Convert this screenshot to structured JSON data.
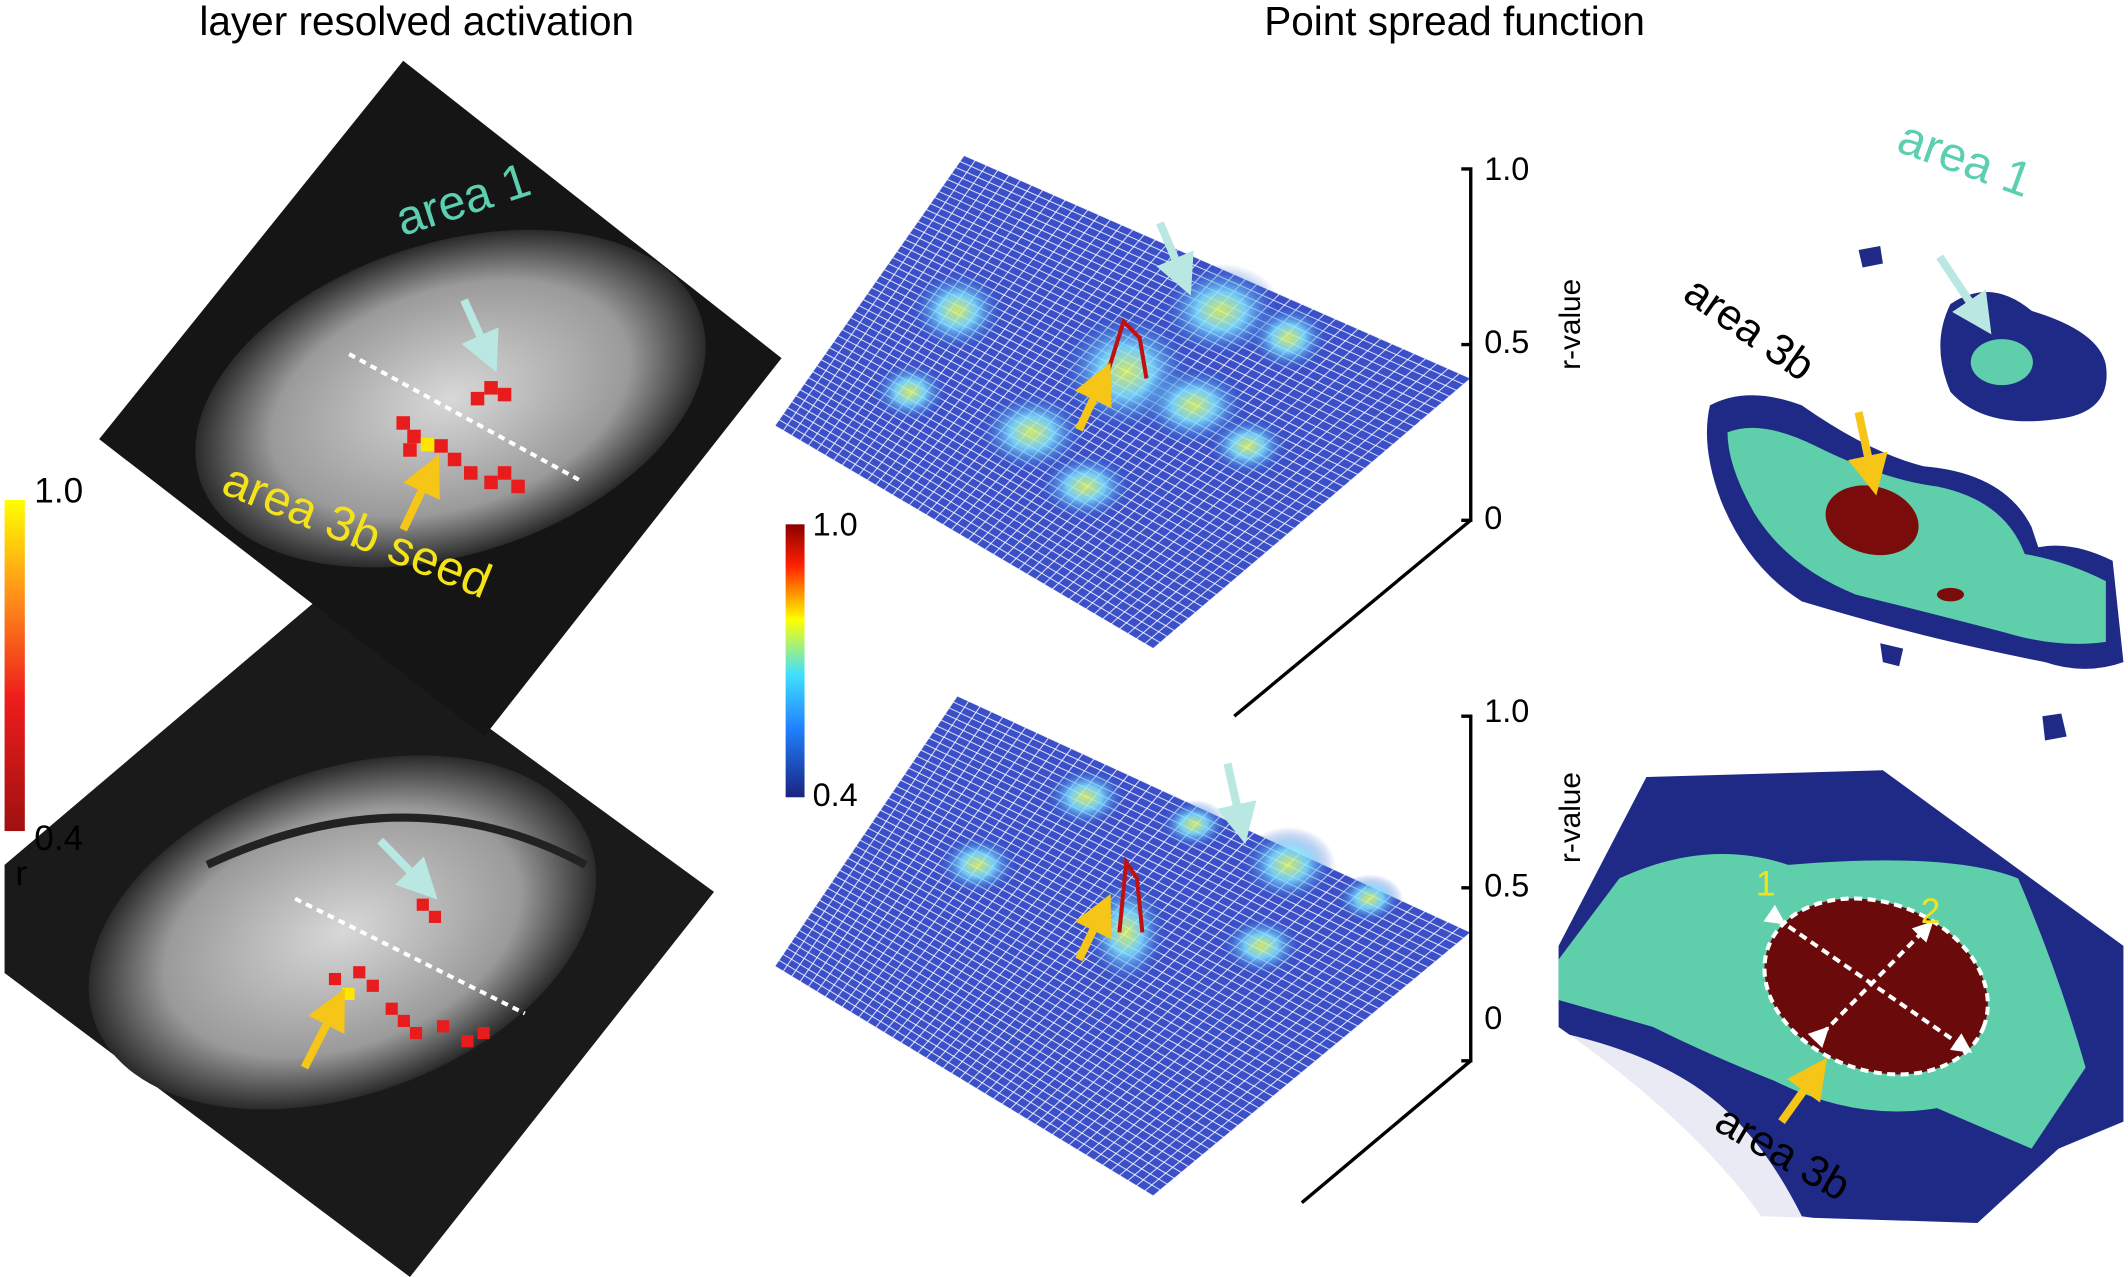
{
  "left_panel": {
    "title": "layer resolved activation",
    "top_image": {
      "area1_label": "area 1",
      "seed_label": "area 3b seed"
    },
    "colorbar": {
      "max_label": "1.0",
      "min_label": "0.4",
      "unit_label": "r"
    }
  },
  "middle_panel": {
    "title": "Point spread function",
    "colorbar": {
      "max_label": "1.0",
      "min_label": "0.4"
    },
    "top_plot": {
      "z_ticks": [
        "1.0",
        "0.5",
        "0"
      ],
      "z_label": "r-value"
    },
    "bottom_plot": {
      "z_ticks": [
        "1.0",
        "0.5",
        "0"
      ],
      "z_label": "r-value"
    }
  },
  "right_panel": {
    "top_contour": {
      "area1_label": "area 1",
      "area3b_label": "area 3b"
    },
    "bottom_contour": {
      "axis1_label": "1",
      "axis2_label": "2",
      "area3b_label": "area 3b"
    }
  }
}
